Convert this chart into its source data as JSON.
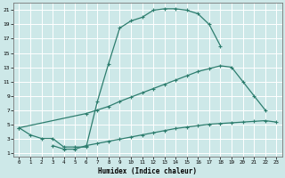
{
  "title": "",
  "xlabel": "Humidex (Indice chaleur)",
  "bg_color": "#cde8e8",
  "grid_color": "#ffffff",
  "line_color": "#2d7d6e",
  "xlim": [
    -0.5,
    23.5
  ],
  "ylim": [
    0.5,
    22
  ],
  "xticks": [
    0,
    1,
    2,
    3,
    4,
    5,
    6,
    7,
    8,
    9,
    10,
    11,
    12,
    13,
    14,
    15,
    16,
    17,
    18,
    19,
    20,
    21,
    22,
    23
  ],
  "yticks": [
    1,
    3,
    5,
    7,
    9,
    11,
    13,
    15,
    17,
    19,
    21
  ],
  "curve1_x": [
    0,
    1,
    2,
    3,
    4,
    5,
    6,
    7,
    8,
    9,
    10,
    11,
    12,
    13,
    14,
    15,
    16,
    17,
    18
  ],
  "curve1_y": [
    4.5,
    3.5,
    3.0,
    3.0,
    1.8,
    1.8,
    1.8,
    8.2,
    13.5,
    18.5,
    19.5,
    20.0,
    21.0,
    21.2,
    21.2,
    21.0,
    20.5,
    19.0,
    16.0
  ],
  "curve2_x": [
    0,
    6,
    7,
    8,
    9,
    10,
    11,
    12,
    13,
    14,
    15,
    16,
    17,
    18,
    19,
    20,
    21,
    22
  ],
  "curve2_y": [
    4.5,
    6.5,
    7.0,
    7.5,
    8.2,
    8.8,
    9.4,
    10.0,
    10.6,
    11.2,
    11.8,
    12.4,
    12.8,
    13.2,
    13.0,
    11.0,
    9.0,
    7.0
  ],
  "curve3_x": [
    3,
    4,
    5,
    6,
    7,
    8,
    9,
    10,
    11,
    12,
    13,
    14,
    15,
    16,
    17,
    18,
    19,
    20,
    21,
    22,
    23
  ],
  "curve3_y": [
    2.0,
    1.5,
    1.5,
    2.0,
    2.3,
    2.6,
    2.9,
    3.2,
    3.5,
    3.8,
    4.1,
    4.4,
    4.6,
    4.8,
    5.0,
    5.1,
    5.2,
    5.3,
    5.4,
    5.5,
    5.3
  ]
}
